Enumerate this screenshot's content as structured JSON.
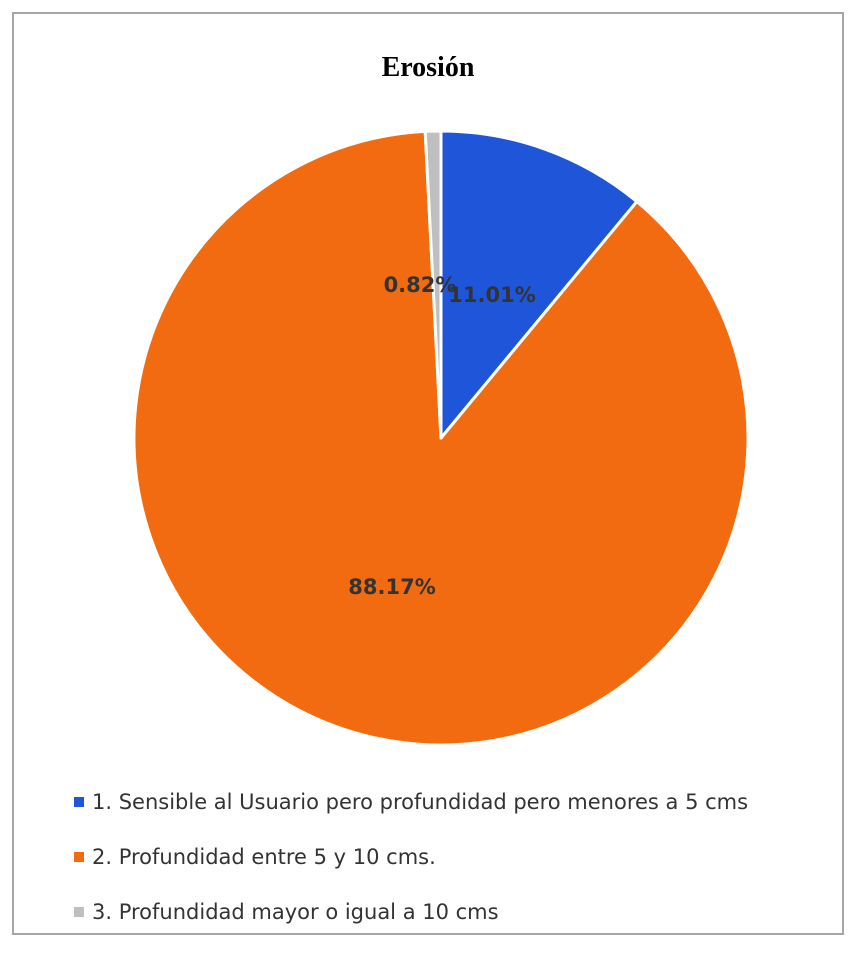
{
  "chart_data": {
    "type": "pie",
    "title": "Erosión",
    "categories": [
      "1. Sensible al Usuario pero profundidad pero menores a  5 cms",
      "2. Profundidad entre 5 y 10 cms.",
      "3. Profundidad mayor o igual a 10 cms"
    ],
    "values": [
      11.01,
      88.17,
      0.82
    ],
    "labels": [
      "11.01%",
      "88.17%",
      "0.82%"
    ],
    "colors": [
      "#1f55d9",
      "#f26b10",
      "#bfbfbf"
    ],
    "start_angle": "12 o'clock",
    "direction": "clockwise",
    "legend_position": "bottom"
  }
}
